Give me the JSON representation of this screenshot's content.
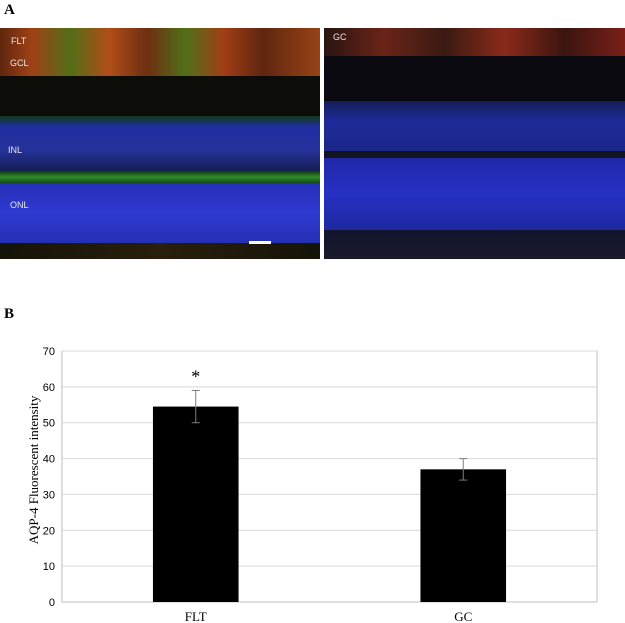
{
  "panel_a": {
    "letter": "A",
    "left_image": {
      "labels": [
        "FLT",
        "GCL",
        "INL",
        "ONL"
      ]
    },
    "right_image": {
      "labels": [
        "GC"
      ]
    }
  },
  "panel_b": {
    "letter": "B"
  },
  "chart_data": {
    "type": "bar",
    "categories": [
      "FLT",
      "GC"
    ],
    "values": [
      54.5,
      37
    ],
    "error": [
      4.5,
      3
    ],
    "annotations": [
      "*",
      ""
    ],
    "title": "",
    "xlabel": "",
    "ylabel": "AQP-4 Fluorescent intensity",
    "ylim": [
      0,
      70
    ],
    "yticks": [
      0,
      10,
      20,
      30,
      40,
      50,
      60,
      70
    ],
    "grid": true,
    "colors": {
      "bar": "#000000",
      "grid": "#d9d9d9",
      "axis": "#bfbfbf"
    }
  }
}
